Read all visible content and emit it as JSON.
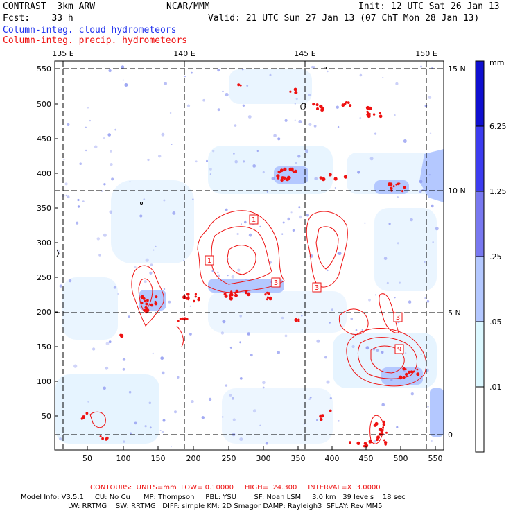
{
  "header": {
    "model": "CONTRAST  3km ARW",
    "org": "NCAR/MMM",
    "init": "Init: 12 UTC Sat 26 Jan 13",
    "fcst": "Fcst:    33 h",
    "valid": "Valid: 21 UTC Sun 27 Jan 13 (07 ChT Mon 28 Jan 13)",
    "field_cloud": "Column-integ. cloud hydrometeors",
    "field_precip": "Column-integ. precip. hydrometeors"
  },
  "map": {
    "lon_labels": [
      "135 E",
      "140 E",
      "145 E",
      "150 E"
    ],
    "lat_labels": [
      "15 N",
      "10 N",
      "5 N",
      "0"
    ],
    "x_ticks": [
      "50",
      "100",
      "150",
      "200",
      "250",
      "300",
      "350",
      "400",
      "450",
      "500",
      "550"
    ],
    "y_ticks": [
      "550",
      "500",
      "450",
      "400",
      "350",
      "300",
      "250",
      "200",
      "150",
      "100",
      "50"
    ],
    "contour_labels": [
      "1",
      "1",
      "3",
      "3",
      "3",
      "9"
    ]
  },
  "colorbar": {
    "unit": "mm",
    "labels": [
      "6.25",
      "1.25",
      ".25",
      ".05",
      ".01"
    ],
    "colors": [
      "#0f0fd0",
      "#3c3cf0",
      "#7878f0",
      "#b4c8ff",
      "#dcf8ff",
      "#ffffff"
    ]
  },
  "footer": {
    "contours": "CONTOURS:  UNITS=mm  LOW= 0.10000     HIGH=  24.300     INTERVAL=X  3.0000",
    "model_info": "Model Info: V3.5.1     CU: No Cu      MP: Thompson     PBL: YSU        SF: Noah LSM     3.0 km   39 levels    18 sec",
    "model_info2": "LW: RRTMG    SW: RRTMG   DIFF: simple KM: 2D Smagor DAMP: Rayleigh3  SFLAY: Rev MM5"
  }
}
